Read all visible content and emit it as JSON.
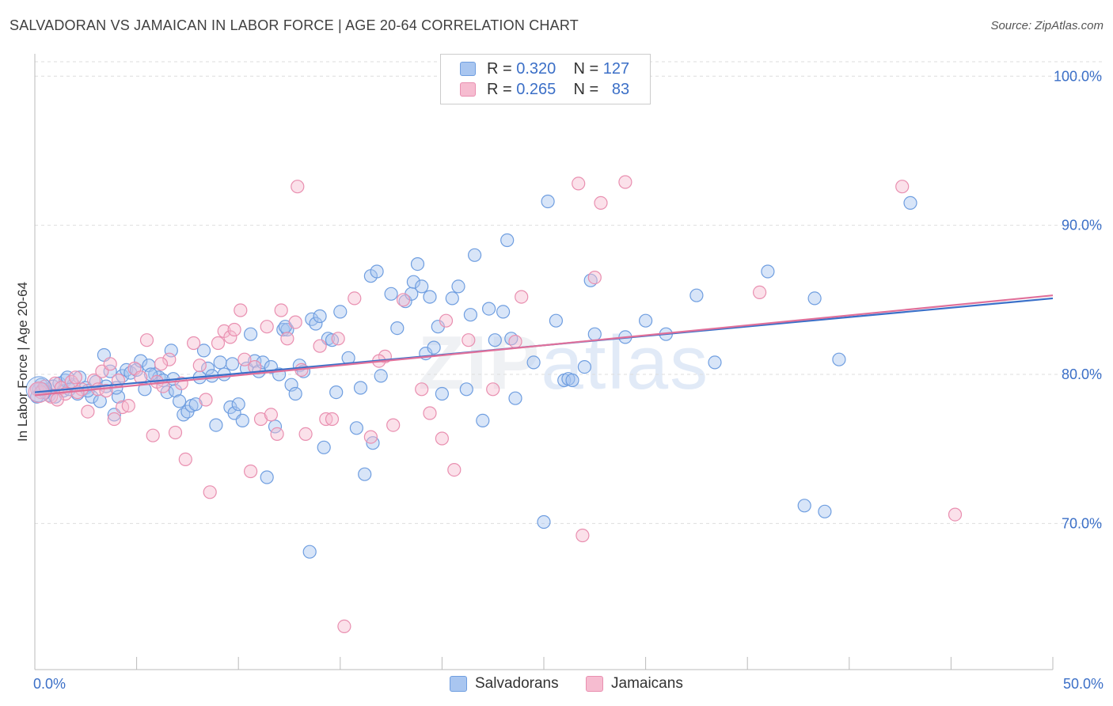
{
  "title": "SALVADORAN VS JAMAICAN IN LABOR FORCE | AGE 20-64 CORRELATION CHART",
  "source": "Source: ZipAtlas.com",
  "watermark": {
    "zip": "ZIP",
    "atlas": "atlas"
  },
  "legend": {
    "rows": [
      {
        "r_label": "R =",
        "r_value": "0.320",
        "n_label": "N =",
        "n_value": "127"
      },
      {
        "r_label": "R =",
        "r_value": "0.265",
        "n_label": "N =",
        "n_value": "83"
      }
    ]
  },
  "colors": {
    "blue_fill": "#a9c6f0",
    "blue_stroke": "#6f9ee0",
    "blue_line": "#3a70c9",
    "pink_fill": "#f6bcd0",
    "pink_stroke": "#e98fb0",
    "pink_line": "#e0709a",
    "tick_blue": "#3b6fc7",
    "grid": "#dddddd"
  },
  "chart_data": {
    "type": "scatter",
    "title": "SALVADORAN VS JAMAICAN IN LABOR FORCE | AGE 20-64 CORRELATION CHART",
    "xlabel": "",
    "ylabel": "In Labor Force | Age 20-64",
    "xlim": [
      0,
      50
    ],
    "ylim": [
      60.2,
      101.5
    ],
    "x_tick_labels": [
      "0.0%",
      "50.0%"
    ],
    "y_ticks": [
      70,
      80,
      90,
      100
    ],
    "y_tick_labels": [
      "70.0%",
      "80.0%",
      "90.0%",
      "100.0%"
    ],
    "grid": true,
    "legend_position": "bottom",
    "series": [
      {
        "name": "Salvadorans",
        "color": "#a9c6f0",
        "r": 0.32,
        "n": 127,
        "trend": {
          "x": [
            0,
            50
          ],
          "y": [
            78.8,
            85.1
          ]
        },
        "points": [
          [
            0.1,
            78.5
          ],
          [
            0.2,
            79.0
          ],
          [
            0.3,
            79.3
          ],
          [
            0.5,
            78.8
          ],
          [
            0.7,
            78.6
          ],
          [
            0.9,
            79.2
          ],
          [
            1.0,
            78.5
          ],
          [
            1.2,
            79.4
          ],
          [
            1.4,
            78.9
          ],
          [
            1.5,
            79.6
          ],
          [
            1.7,
            79.0
          ],
          [
            1.9,
            79.3
          ],
          [
            2.1,
            78.7
          ],
          [
            2.2,
            79.8
          ],
          [
            2.5,
            79.1
          ],
          [
            2.8,
            78.5
          ],
          [
            3.0,
            79.5
          ],
          [
            3.2,
            78.2
          ],
          [
            3.4,
            81.3
          ],
          [
            3.5,
            79.2
          ],
          [
            3.7,
            80.2
          ],
          [
            3.9,
            77.3
          ],
          [
            4.1,
            78.5
          ],
          [
            4.3,
            79.9
          ],
          [
            4.5,
            80.3
          ],
          [
            4.7,
            80.1
          ],
          [
            5.0,
            80.3
          ],
          [
            5.2,
            80.9
          ],
          [
            5.4,
            79.0
          ],
          [
            5.6,
            80.6
          ],
          [
            5.9,
            80.0
          ],
          [
            6.1,
            79.8
          ],
          [
            6.3,
            79.6
          ],
          [
            6.5,
            78.8
          ],
          [
            6.7,
            81.6
          ],
          [
            6.9,
            78.9
          ],
          [
            7.1,
            78.2
          ],
          [
            7.3,
            77.3
          ],
          [
            7.5,
            77.5
          ],
          [
            7.7,
            77.9
          ],
          [
            7.9,
            78.0
          ],
          [
            8.1,
            79.8
          ],
          [
            8.3,
            81.6
          ],
          [
            8.5,
            80.4
          ],
          [
            8.7,
            79.9
          ],
          [
            8.9,
            76.6
          ],
          [
            9.1,
            80.8
          ],
          [
            9.3,
            80.0
          ],
          [
            9.6,
            77.8
          ],
          [
            9.8,
            77.4
          ],
          [
            10.0,
            78.0
          ],
          [
            10.2,
            76.9
          ],
          [
            10.4,
            80.4
          ],
          [
            10.6,
            82.7
          ],
          [
            10.8,
            80.9
          ],
          [
            11.0,
            80.2
          ],
          [
            11.2,
            80.8
          ],
          [
            11.4,
            73.1
          ],
          [
            11.6,
            80.5
          ],
          [
            11.8,
            76.5
          ],
          [
            12.0,
            80.0
          ],
          [
            12.2,
            83.0
          ],
          [
            12.4,
            83.0
          ],
          [
            12.6,
            79.3
          ],
          [
            12.8,
            78.7
          ],
          [
            13.0,
            80.6
          ],
          [
            13.2,
            80.2
          ],
          [
            13.6,
            83.7
          ],
          [
            13.8,
            83.4
          ],
          [
            14.0,
            83.9
          ],
          [
            14.2,
            75.1
          ],
          [
            14.4,
            82.4
          ],
          [
            14.6,
            82.3
          ],
          [
            14.8,
            78.8
          ],
          [
            15.0,
            84.2
          ],
          [
            15.4,
            81.1
          ],
          [
            15.8,
            76.4
          ],
          [
            16.0,
            79.1
          ],
          [
            16.2,
            73.3
          ],
          [
            16.5,
            86.6
          ],
          [
            16.6,
            75.4
          ],
          [
            16.8,
            86.9
          ],
          [
            17.0,
            79.9
          ],
          [
            17.5,
            85.4
          ],
          [
            17.8,
            83.1
          ],
          [
            18.2,
            84.9
          ],
          [
            18.5,
            85.4
          ],
          [
            18.6,
            86.2
          ],
          [
            18.8,
            87.4
          ],
          [
            19.0,
            85.9
          ],
          [
            19.2,
            81.4
          ],
          [
            19.4,
            85.2
          ],
          [
            19.6,
            81.8
          ],
          [
            19.8,
            83.2
          ],
          [
            20.0,
            78.7
          ],
          [
            20.5,
            85.1
          ],
          [
            20.8,
            85.9
          ],
          [
            21.2,
            79.0
          ],
          [
            21.4,
            84.0
          ],
          [
            21.6,
            88.0
          ],
          [
            22.0,
            76.9
          ],
          [
            22.3,
            84.4
          ],
          [
            22.6,
            82.3
          ],
          [
            23.0,
            84.2
          ],
          [
            23.2,
            89.0
          ],
          [
            23.4,
            82.4
          ],
          [
            23.6,
            78.4
          ],
          [
            24.5,
            80.8
          ],
          [
            25.0,
            70.1
          ],
          [
            25.2,
            91.6
          ],
          [
            25.6,
            83.6
          ],
          [
            26.0,
            79.6
          ],
          [
            26.2,
            79.7
          ],
          [
            26.4,
            79.6
          ],
          [
            27.0,
            80.5
          ],
          [
            27.3,
            86.3
          ],
          [
            27.5,
            82.7
          ],
          [
            29.0,
            82.5
          ],
          [
            30.0,
            83.6
          ],
          [
            31.0,
            82.7
          ],
          [
            32.5,
            85.3
          ],
          [
            33.4,
            80.8
          ],
          [
            36.0,
            86.9
          ],
          [
            37.8,
            71.2
          ],
          [
            38.3,
            85.1
          ],
          [
            38.8,
            70.8
          ],
          [
            39.5,
            81.0
          ],
          [
            43.0,
            91.5
          ],
          [
            13.5,
            68.1
          ],
          [
            12.3,
            83.2
          ],
          [
            9.7,
            80.7
          ],
          [
            6.8,
            79.7
          ],
          [
            5.7,
            80.0
          ],
          [
            4.0,
            79.1
          ],
          [
            2.6,
            78.9
          ],
          [
            1.6,
            79.8
          ],
          [
            0.4,
            79.0
          ]
        ]
      },
      {
        "name": "Jamaicans",
        "color": "#f6bcd0",
        "r": 0.265,
        "n": 83,
        "trend": {
          "x": [
            0,
            50
          ],
          "y": [
            78.6,
            85.3
          ]
        },
        "points": [
          [
            0.1,
            79.0
          ],
          [
            0.3,
            78.8
          ],
          [
            0.5,
            79.2
          ],
          [
            0.8,
            78.5
          ],
          [
            1.0,
            79.4
          ],
          [
            1.3,
            79.1
          ],
          [
            1.5,
            78.7
          ],
          [
            1.8,
            79.5
          ],
          [
            2.0,
            79.8
          ],
          [
            2.3,
            79.0
          ],
          [
            2.6,
            77.5
          ],
          [
            2.9,
            79.6
          ],
          [
            3.1,
            79.0
          ],
          [
            3.3,
            80.2
          ],
          [
            3.5,
            78.9
          ],
          [
            3.7,
            80.7
          ],
          [
            3.9,
            77.0
          ],
          [
            4.1,
            79.6
          ],
          [
            4.3,
            77.8
          ],
          [
            4.6,
            77.9
          ],
          [
            4.9,
            80.4
          ],
          [
            5.2,
            79.8
          ],
          [
            5.5,
            82.3
          ],
          [
            5.8,
            75.9
          ],
          [
            6.0,
            79.5
          ],
          [
            6.3,
            79.2
          ],
          [
            6.6,
            81.0
          ],
          [
            6.9,
            76.1
          ],
          [
            7.2,
            79.4
          ],
          [
            7.4,
            74.3
          ],
          [
            7.8,
            82.1
          ],
          [
            8.1,
            80.6
          ],
          [
            8.4,
            78.3
          ],
          [
            8.6,
            72.1
          ],
          [
            9.0,
            82.1
          ],
          [
            9.3,
            82.9
          ],
          [
            9.6,
            82.5
          ],
          [
            9.8,
            83.0
          ],
          [
            10.1,
            84.3
          ],
          [
            10.3,
            81.0
          ],
          [
            10.6,
            73.5
          ],
          [
            10.8,
            80.5
          ],
          [
            11.1,
            77.0
          ],
          [
            11.4,
            83.2
          ],
          [
            11.6,
            77.3
          ],
          [
            11.9,
            76.0
          ],
          [
            12.1,
            84.3
          ],
          [
            12.4,
            82.4
          ],
          [
            12.8,
            83.5
          ],
          [
            12.9,
            92.6
          ],
          [
            13.1,
            80.3
          ],
          [
            13.3,
            76.0
          ],
          [
            14.3,
            77.0
          ],
          [
            14.6,
            77.0
          ],
          [
            14.9,
            82.4
          ],
          [
            15.2,
            63.1
          ],
          [
            15.7,
            85.1
          ],
          [
            16.5,
            75.8
          ],
          [
            17.2,
            81.2
          ],
          [
            17.6,
            76.6
          ],
          [
            18.1,
            85.0
          ],
          [
            19.0,
            79.0
          ],
          [
            19.4,
            77.4
          ],
          [
            20.0,
            75.7
          ],
          [
            20.2,
            83.6
          ],
          [
            20.6,
            73.6
          ],
          [
            21.3,
            82.3
          ],
          [
            22.5,
            79.0
          ],
          [
            23.6,
            82.2
          ],
          [
            23.9,
            85.2
          ],
          [
            26.7,
            92.8
          ],
          [
            26.9,
            69.2
          ],
          [
            27.5,
            86.5
          ],
          [
            27.8,
            91.5
          ],
          [
            29.0,
            92.9
          ],
          [
            35.6,
            85.5
          ],
          [
            42.6,
            92.6
          ],
          [
            45.2,
            70.6
          ],
          [
            2.1,
            78.8
          ],
          [
            1.1,
            78.3
          ],
          [
            16.9,
            80.9
          ],
          [
            14.0,
            81.9
          ],
          [
            6.2,
            80.7
          ]
        ]
      }
    ]
  },
  "bottom_legend": [
    {
      "label": "Salvadorans"
    },
    {
      "label": "Jamaicans"
    }
  ]
}
